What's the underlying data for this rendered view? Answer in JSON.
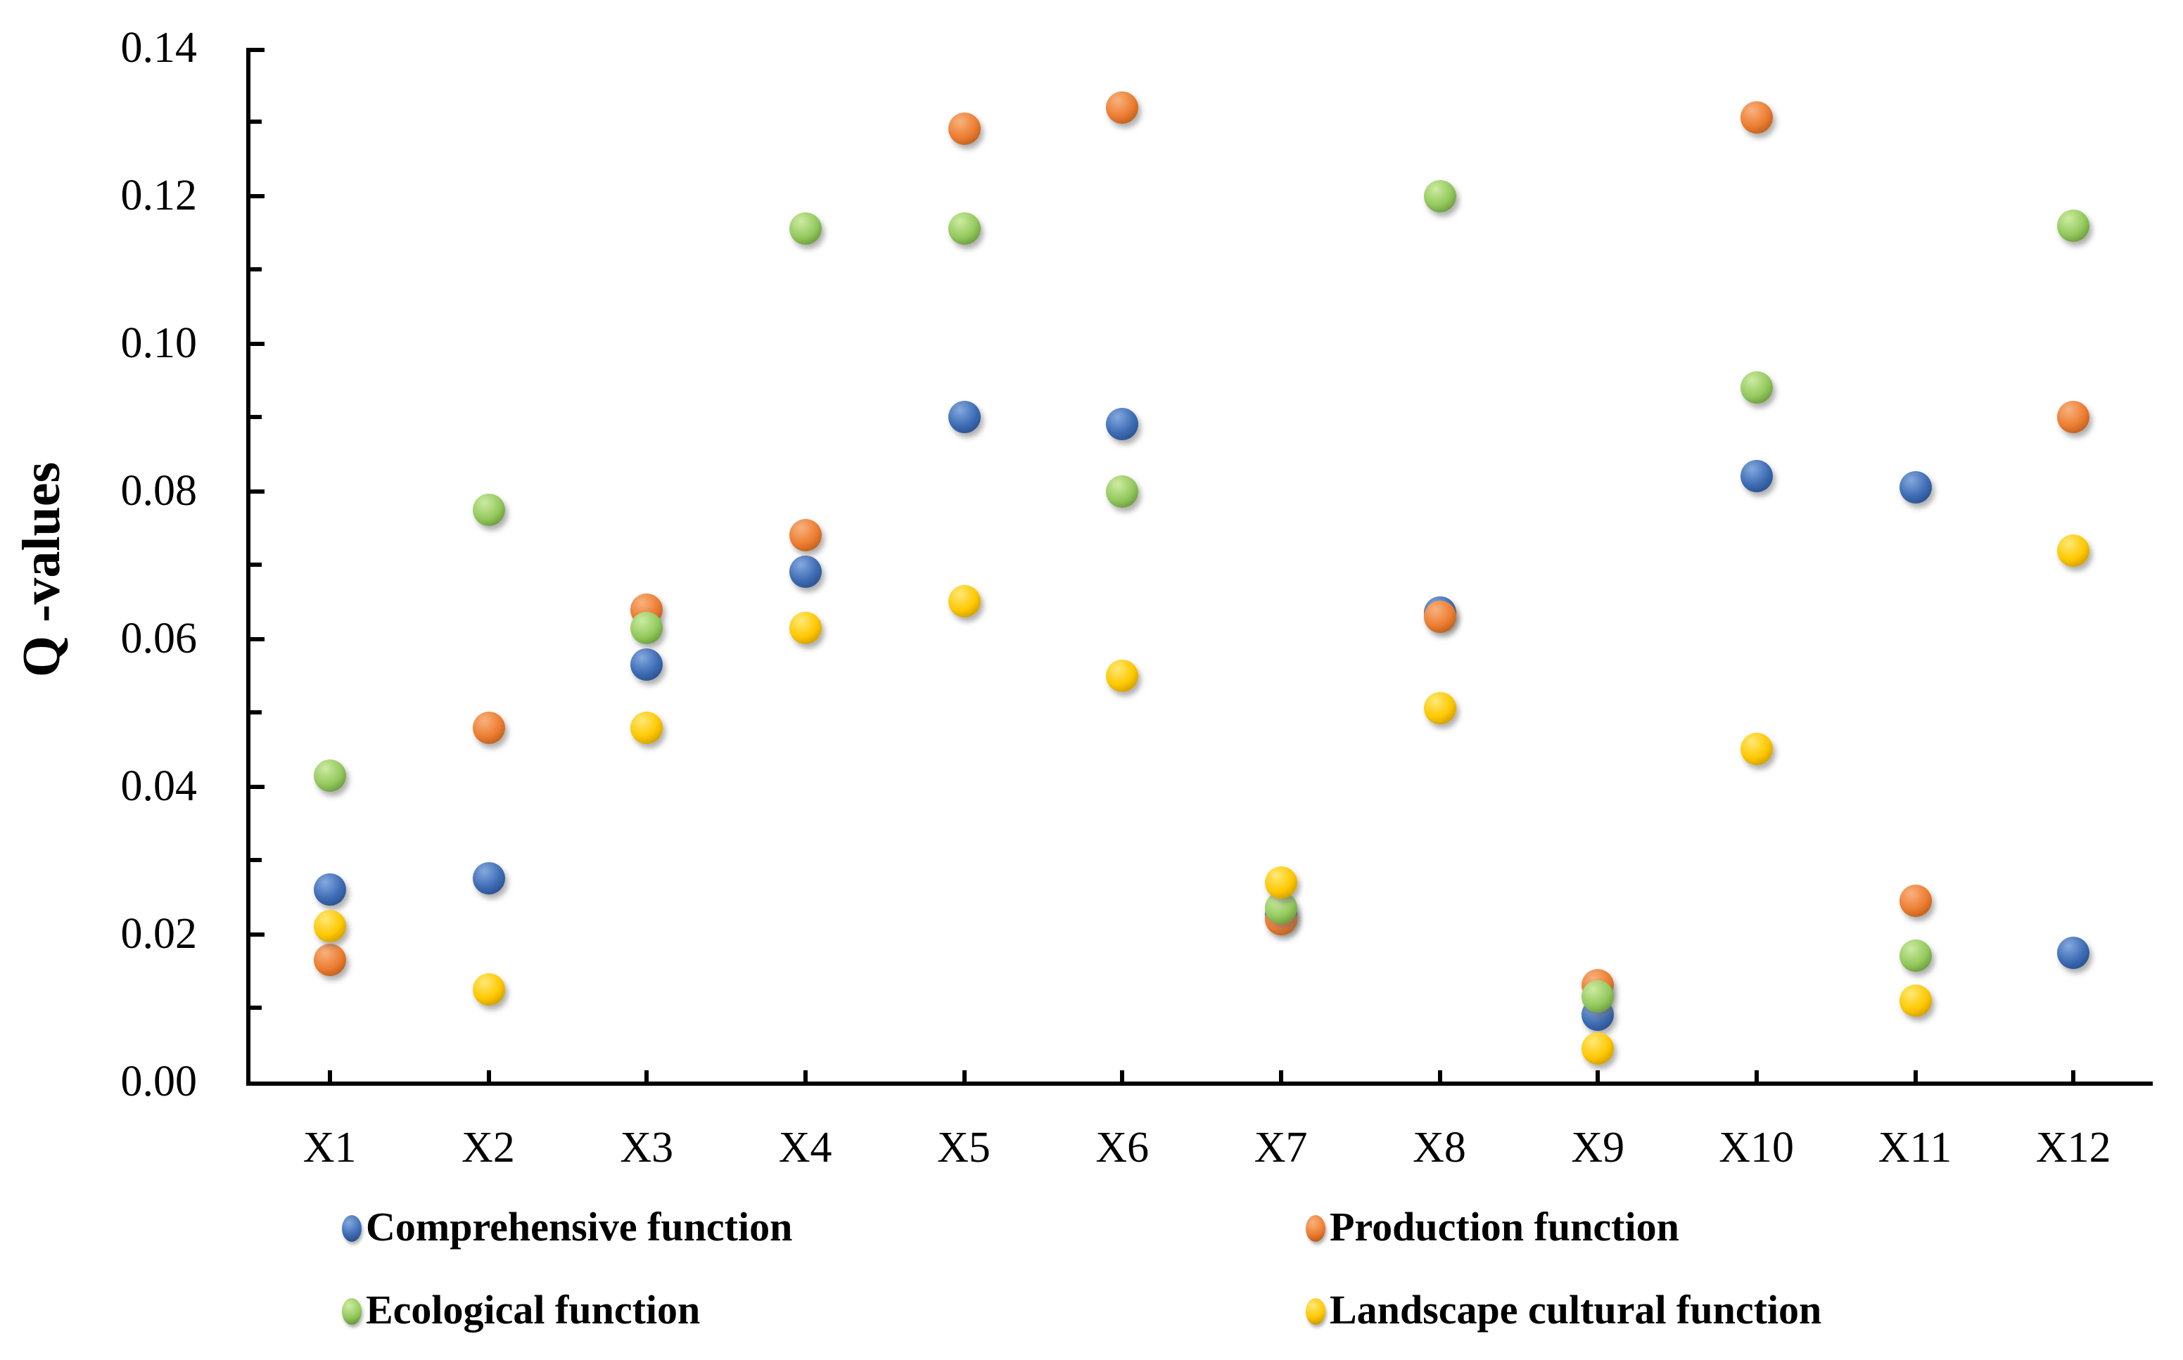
{
  "chart_data": {
    "type": "scatter",
    "title": "",
    "ylabel": "Q -values",
    "xlabel": "",
    "categories": [
      "X1",
      "X2",
      "X3",
      "X4",
      "X5",
      "X6",
      "X7",
      "X8",
      "X9",
      "X10",
      "X11",
      "X12"
    ],
    "ylim": [
      0.0,
      0.14
    ],
    "ytick_step": 0.02,
    "yminor_tick_step": 0.01,
    "ytick_labels": [
      "0.00",
      "0.02",
      "0.04",
      "0.06",
      "0.08",
      "0.10",
      "0.12",
      "0.14"
    ],
    "grid": false,
    "legend_position": "bottom",
    "series": [
      {
        "name": "Comprehensive function",
        "color": "#3E6CB5",
        "color_light": "#85A9DE",
        "color_dark": "#1F3F73",
        "values": [
          0.026,
          0.0275,
          0.0565,
          0.069,
          0.09,
          0.089,
          0.0225,
          0.0635,
          0.009,
          0.082,
          0.0805,
          0.0175
        ]
      },
      {
        "name": "Production function",
        "color": "#ED7D31",
        "color_light": "#F7B27F",
        "color_dark": "#9C4D12",
        "values": [
          0.0165,
          0.048,
          0.064,
          0.074,
          0.129,
          0.132,
          0.022,
          0.063,
          0.013,
          0.1305,
          0.0245,
          0.09
        ]
      },
      {
        "name": "Ecological function",
        "color": "#94C95D",
        "color_light": "#CDEBA2",
        "color_dark": "#4F7D2B",
        "values": [
          0.0415,
          0.0775,
          0.0615,
          0.1155,
          0.1155,
          0.08,
          0.0235,
          0.12,
          0.0115,
          0.094,
          0.017,
          0.116
        ]
      },
      {
        "name": "Landscape cultural function",
        "color": "#FFC800",
        "color_light": "#FFE878",
        "color_dark": "#B08200",
        "values": [
          0.021,
          0.0125,
          0.048,
          0.0615,
          0.065,
          0.055,
          0.027,
          0.0505,
          0.0045,
          0.045,
          0.011,
          0.072
        ]
      }
    ]
  }
}
